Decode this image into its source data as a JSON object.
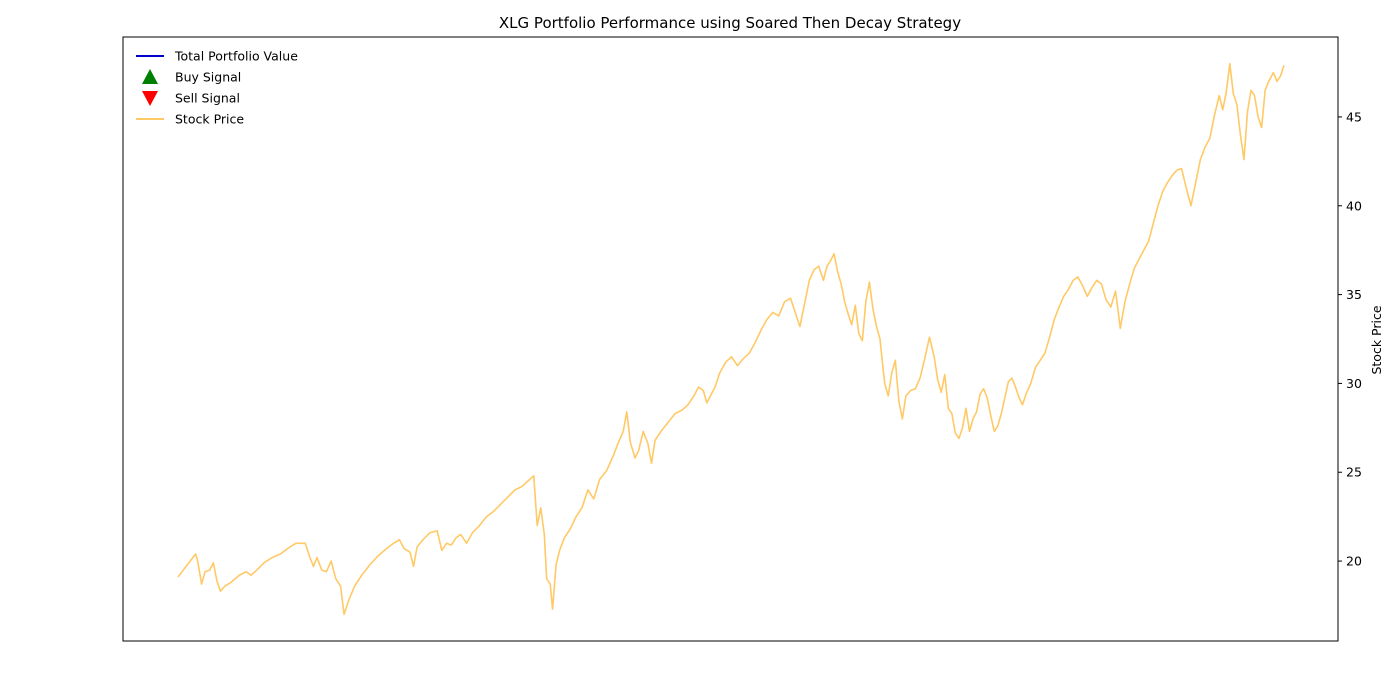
{
  "chart_data": {
    "type": "line",
    "title": "XLG Portfolio Performance using Soared Then Decay Strategy",
    "xlabel": "",
    "ylabel_right": "Stock Price",
    "y_right_lim": [
      15.5,
      49.5
    ],
    "y_right_ticks": [
      20,
      25,
      30,
      35,
      40,
      45
    ],
    "x_index_range": [
      0,
      1000
    ],
    "legend_position": "upper-left",
    "grid": false,
    "legend": [
      {
        "label": "Total Portfolio Value",
        "kind": "line",
        "color": "#0000cc"
      },
      {
        "label": "Buy Signal",
        "kind": "marker-up",
        "color": "#008000"
      },
      {
        "label": "Sell Signal",
        "kind": "marker-down",
        "color": "#ff0000"
      },
      {
        "label": "Stock Price",
        "kind": "line",
        "color": "#ffc966"
      }
    ],
    "series": [
      {
        "name": "Stock Price",
        "color": "#ffc966",
        "points": [
          [
            0,
            19.1
          ],
          [
            8,
            19.8
          ],
          [
            15,
            20.4
          ],
          [
            17,
            19.9
          ],
          [
            20,
            18.7
          ],
          [
            23,
            19.4
          ],
          [
            27,
            19.5
          ],
          [
            30,
            19.9
          ],
          [
            33,
            18.9
          ],
          [
            36,
            18.3
          ],
          [
            40,
            18.6
          ],
          [
            45,
            18.8
          ],
          [
            52,
            19.2
          ],
          [
            58,
            19.4
          ],
          [
            62,
            19.2
          ],
          [
            67,
            19.5
          ],
          [
            73,
            19.9
          ],
          [
            80,
            20.2
          ],
          [
            87,
            20.4
          ],
          [
            93,
            20.7
          ],
          [
            100,
            21.0
          ],
          [
            108,
            21.0
          ],
          [
            112,
            20.2
          ],
          [
            115,
            19.7
          ],
          [
            118,
            20.2
          ],
          [
            122,
            19.5
          ],
          [
            126,
            19.4
          ],
          [
            130,
            20.0
          ],
          [
            134,
            19.0
          ],
          [
            138,
            18.6
          ],
          [
            141,
            17.0
          ],
          [
            145,
            17.8
          ],
          [
            150,
            18.6
          ],
          [
            156,
            19.2
          ],
          [
            163,
            19.8
          ],
          [
            170,
            20.3
          ],
          [
            177,
            20.7
          ],
          [
            183,
            21.0
          ],
          [
            188,
            21.2
          ],
          [
            192,
            20.7
          ],
          [
            197,
            20.5
          ],
          [
            200,
            19.7
          ],
          [
            203,
            20.8
          ],
          [
            208,
            21.2
          ],
          [
            214,
            21.6
          ],
          [
            220,
            21.7
          ],
          [
            224,
            20.6
          ],
          [
            228,
            21.0
          ],
          [
            232,
            20.9
          ],
          [
            236,
            21.3
          ],
          [
            240,
            21.5
          ],
          [
            245,
            21.0
          ],
          [
            250,
            21.6
          ],
          [
            256,
            22.0
          ],
          [
            262,
            22.5
          ],
          [
            268,
            22.8
          ],
          [
            274,
            23.2
          ],
          [
            280,
            23.6
          ],
          [
            286,
            24.0
          ],
          [
            292,
            24.2
          ],
          [
            297,
            24.5
          ],
          [
            302,
            24.8
          ],
          [
            305,
            22.0
          ],
          [
            308,
            23.0
          ],
          [
            311,
            21.5
          ],
          [
            313,
            19.0
          ],
          [
            316,
            18.7
          ],
          [
            318,
            17.3
          ],
          [
            321,
            19.8
          ],
          [
            324,
            20.6
          ],
          [
            328,
            21.3
          ],
          [
            333,
            21.8
          ],
          [
            338,
            22.5
          ],
          [
            343,
            23.0
          ],
          [
            348,
            24.0
          ],
          [
            353,
            23.5
          ],
          [
            358,
            24.6
          ],
          [
            364,
            25.1
          ],
          [
            370,
            26.0
          ],
          [
            374,
            26.7
          ],
          [
            378,
            27.3
          ],
          [
            381,
            28.4
          ],
          [
            384,
            26.7
          ],
          [
            388,
            25.8
          ],
          [
            391,
            26.2
          ],
          [
            395,
            27.3
          ],
          [
            399,
            26.6
          ],
          [
            402,
            25.5
          ],
          [
            405,
            26.8
          ],
          [
            410,
            27.3
          ],
          [
            416,
            27.8
          ],
          [
            422,
            28.3
          ],
          [
            428,
            28.5
          ],
          [
            433,
            28.8
          ],
          [
            438,
            29.3
          ],
          [
            442,
            29.8
          ],
          [
            446,
            29.6
          ],
          [
            449,
            28.9
          ],
          [
            452,
            29.3
          ],
          [
            456,
            29.8
          ],
          [
            460,
            30.6
          ],
          [
            465,
            31.2
          ],
          [
            470,
            31.5
          ],
          [
            475,
            31.0
          ],
          [
            480,
            31.4
          ],
          [
            485,
            31.7
          ],
          [
            490,
            32.3
          ],
          [
            495,
            33.0
          ],
          [
            500,
            33.6
          ],
          [
            505,
            34.0
          ],
          [
            510,
            33.8
          ],
          [
            515,
            34.6
          ],
          [
            520,
            34.8
          ],
          [
            524,
            34.0
          ],
          [
            528,
            33.2
          ],
          [
            532,
            34.5
          ],
          [
            536,
            35.8
          ],
          [
            540,
            36.4
          ],
          [
            544,
            36.6
          ],
          [
            548,
            35.8
          ],
          [
            551,
            36.6
          ],
          [
            554,
            36.9
          ],
          [
            557,
            37.3
          ],
          [
            560,
            36.3
          ],
          [
            563,
            35.6
          ],
          [
            566,
            34.6
          ],
          [
            569,
            33.9
          ],
          [
            572,
            33.3
          ],
          [
            575,
            34.4
          ],
          [
            578,
            32.8
          ],
          [
            581,
            32.4
          ],
          [
            584,
            34.6
          ],
          [
            587,
            35.7
          ],
          [
            590,
            34.2
          ],
          [
            593,
            33.2
          ],
          [
            596,
            32.5
          ],
          [
            598,
            31.2
          ],
          [
            600,
            30.0
          ],
          [
            603,
            29.3
          ],
          [
            606,
            30.6
          ],
          [
            609,
            31.3
          ],
          [
            612,
            29.0
          ],
          [
            615,
            28.0
          ],
          [
            618,
            29.3
          ],
          [
            622,
            29.6
          ],
          [
            626,
            29.7
          ],
          [
            630,
            30.3
          ],
          [
            634,
            31.4
          ],
          [
            638,
            32.6
          ],
          [
            642,
            31.5
          ],
          [
            645,
            30.2
          ],
          [
            648,
            29.5
          ],
          [
            651,
            30.5
          ],
          [
            654,
            28.6
          ],
          [
            657,
            28.3
          ],
          [
            660,
            27.2
          ],
          [
            663,
            26.9
          ],
          [
            666,
            27.5
          ],
          [
            669,
            28.6
          ],
          [
            672,
            27.3
          ],
          [
            675,
            28.0
          ],
          [
            678,
            28.4
          ],
          [
            681,
            29.4
          ],
          [
            684,
            29.7
          ],
          [
            687,
            29.2
          ],
          [
            690,
            28.2
          ],
          [
            693,
            27.3
          ],
          [
            696,
            27.6
          ],
          [
            699,
            28.3
          ],
          [
            702,
            29.2
          ],
          [
            705,
            30.1
          ],
          [
            708,
            30.3
          ],
          [
            711,
            29.8
          ],
          [
            714,
            29.2
          ],
          [
            717,
            28.8
          ],
          [
            720,
            29.4
          ],
          [
            724,
            30.0
          ],
          [
            728,
            30.9
          ],
          [
            732,
            31.3
          ],
          [
            736,
            31.7
          ],
          [
            740,
            32.6
          ],
          [
            744,
            33.6
          ],
          [
            748,
            34.3
          ],
          [
            752,
            34.9
          ],
          [
            756,
            35.3
          ],
          [
            760,
            35.8
          ],
          [
            764,
            36.0
          ],
          [
            768,
            35.5
          ],
          [
            772,
            34.9
          ],
          [
            776,
            35.4
          ],
          [
            780,
            35.8
          ],
          [
            784,
            35.6
          ],
          [
            788,
            34.7
          ],
          [
            792,
            34.3
          ],
          [
            796,
            35.2
          ],
          [
            800,
            33.1
          ],
          [
            804,
            34.6
          ],
          [
            808,
            35.6
          ],
          [
            812,
            36.5
          ],
          [
            816,
            37.0
          ],
          [
            820,
            37.5
          ],
          [
            824,
            38.0
          ],
          [
            828,
            39.0
          ],
          [
            832,
            40.0
          ],
          [
            836,
            40.8
          ],
          [
            840,
            41.3
          ],
          [
            844,
            41.7
          ],
          [
            848,
            42.0
          ],
          [
            852,
            42.1
          ],
          [
            856,
            41.0
          ],
          [
            860,
            40.0
          ],
          [
            864,
            41.3
          ],
          [
            868,
            42.6
          ],
          [
            872,
            43.3
          ],
          [
            876,
            43.8
          ],
          [
            880,
            45.1
          ],
          [
            884,
            46.2
          ],
          [
            887,
            45.4
          ],
          [
            890,
            46.4
          ],
          [
            893,
            48.0
          ],
          [
            896,
            46.3
          ],
          [
            899,
            45.7
          ],
          [
            902,
            44.0
          ],
          [
            905,
            42.6
          ],
          [
            908,
            45.3
          ],
          [
            911,
            46.5
          ],
          [
            914,
            46.2
          ],
          [
            917,
            45.0
          ],
          [
            920,
            44.4
          ],
          [
            923,
            46.5
          ],
          [
            926,
            47.0
          ],
          [
            930,
            47.5
          ],
          [
            933,
            47.0
          ],
          [
            936,
            47.3
          ],
          [
            939,
            47.9
          ]
        ]
      }
    ]
  }
}
